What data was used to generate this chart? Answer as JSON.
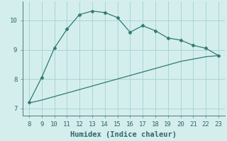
{
  "xlabel": "Humidex (Indice chaleur)",
  "x_upper": [
    8,
    9,
    10,
    11,
    12,
    13,
    14,
    15,
    16,
    17,
    18,
    19,
    20,
    21,
    22,
    23
  ],
  "y_upper": [
    7.2,
    8.05,
    9.05,
    9.7,
    10.2,
    10.32,
    10.27,
    10.1,
    9.6,
    9.82,
    9.65,
    9.4,
    9.33,
    9.15,
    9.05,
    8.8
  ],
  "x_lower": [
    8,
    9,
    10,
    11,
    12,
    13,
    14,
    15,
    16,
    17,
    18,
    19,
    20,
    21,
    22,
    23
  ],
  "y_lower": [
    7.18,
    7.28,
    7.4,
    7.52,
    7.64,
    7.76,
    7.88,
    8.0,
    8.12,
    8.24,
    8.36,
    8.48,
    8.6,
    8.68,
    8.76,
    8.8
  ],
  "line_color": "#2e7b6e",
  "bg_color": "#d4eeee",
  "grid_color": "#aad4d4",
  "ylim": [
    6.75,
    10.65
  ],
  "xlim": [
    7.5,
    23.5
  ],
  "yticks": [
    7,
    8,
    9,
    10
  ],
  "xticks": [
    8,
    9,
    10,
    11,
    12,
    13,
    14,
    15,
    16,
    17,
    18,
    19,
    20,
    21,
    22,
    23
  ],
  "tick_fontsize": 6.5,
  "label_fontsize": 7.5,
  "marker_size": 2.5,
  "linewidth": 0.9
}
